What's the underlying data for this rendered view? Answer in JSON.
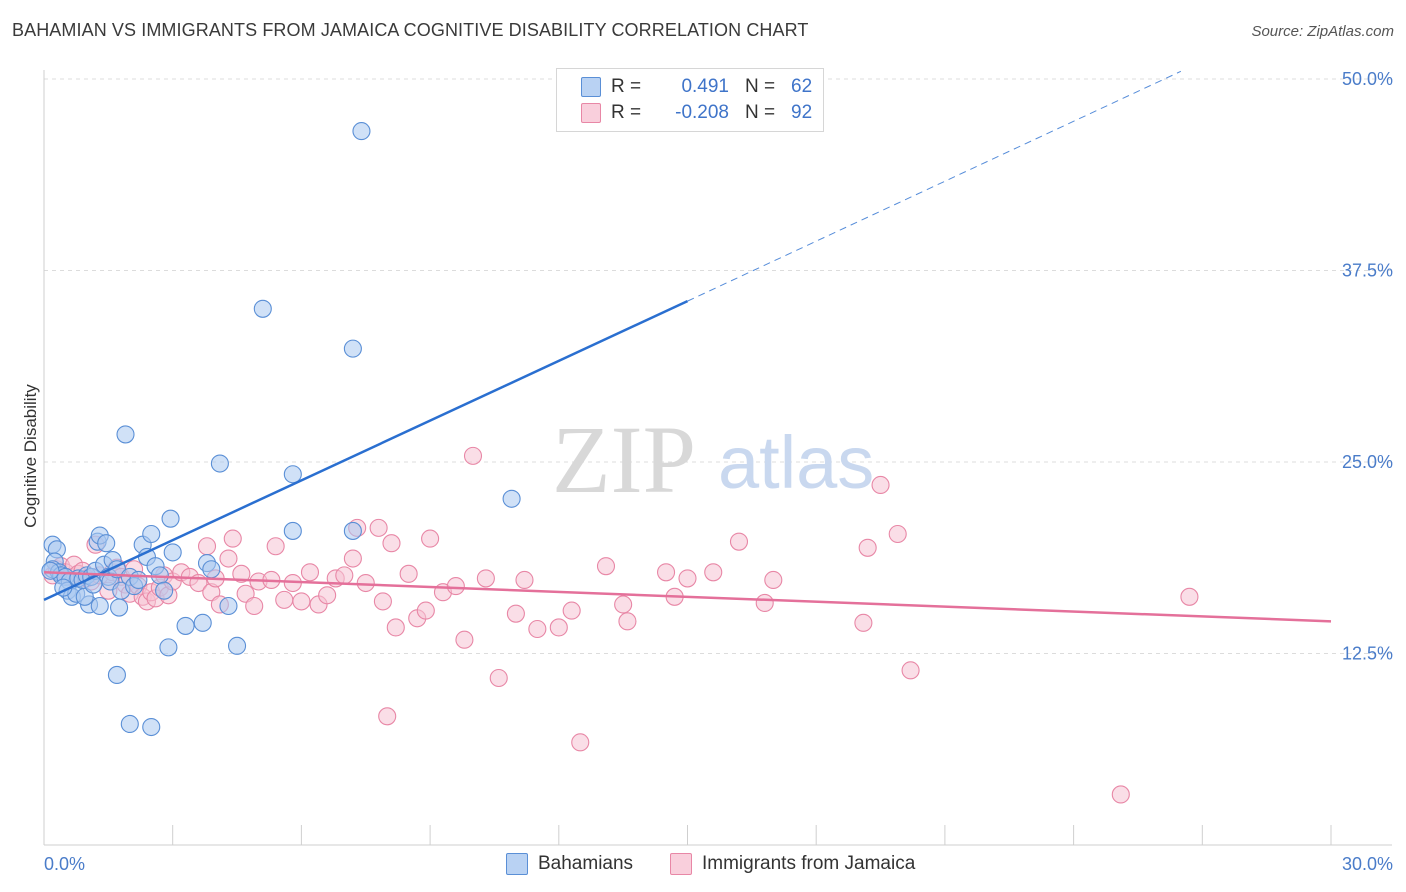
{
  "title": "BAHAMIAN VS IMMIGRANTS FROM JAMAICA COGNITIVE DISABILITY CORRELATION CHART",
  "source": "Source: ZipAtlas.com",
  "watermark": {
    "zip": "ZIP",
    "atlas": "atlas"
  },
  "colors": {
    "blue_fill": "#a9c8f0",
    "blue_stroke": "#5a8fd6",
    "blue_line": "#2a6fd0",
    "pink_fill": "#f6c3d3",
    "pink_stroke": "#e887a6",
    "pink_line": "#e4709a",
    "grid": "#dcdcdc",
    "label": "#4a7cc9"
  },
  "legend": {
    "rows": [
      {
        "r_label": "R =",
        "r_value": "0.491",
        "n_label": "N =",
        "n_value": "62"
      },
      {
        "r_label": "R =",
        "r_value": "-0.208",
        "n_label": "N =",
        "n_value": "92"
      }
    ]
  },
  "bottom_legend": {
    "series1": "Bahamians",
    "series2": "Immigrants from Jamaica"
  },
  "chart_data": {
    "type": "scatter",
    "title": "BAHAMIAN VS IMMIGRANTS FROM JAMAICA COGNITIVE DISABILITY CORRELATION CHART",
    "xlabel": "",
    "ylabel": "Cognitive Disability",
    "xlim": [
      0,
      30
    ],
    "ylim": [
      0,
      50
    ],
    "x_tick_labels": [
      "0.0%",
      "30.0%"
    ],
    "y_ticks": [
      12.5,
      25.0,
      37.5,
      50.0
    ],
    "y_tick_labels": [
      "12.5%",
      "25.0%",
      "37.5%",
      "50.0%"
    ],
    "grid": true,
    "legend_position": "top-center",
    "series": [
      {
        "name": "Bahamians",
        "r": 0.491,
        "n": 62,
        "trend": {
          "x0": 0,
          "y0": 16.0,
          "x1": 15.0,
          "y1": 35.5,
          "dashed_to_x": 26.5,
          "dashed_to_y": 50.5
        },
        "points": [
          [
            0.2,
            19.6
          ],
          [
            0.3,
            19.3
          ],
          [
            0.25,
            18.5
          ],
          [
            0.2,
            18.0
          ],
          [
            0.35,
            17.8
          ],
          [
            0.4,
            17.6
          ],
          [
            0.5,
            17.5
          ],
          [
            0.6,
            17.2
          ],
          [
            0.55,
            16.6
          ],
          [
            0.65,
            16.2
          ],
          [
            0.75,
            16.4
          ],
          [
            0.8,
            17.4
          ],
          [
            0.9,
            17.3
          ],
          [
            1.0,
            17.6
          ],
          [
            1.1,
            17.5
          ],
          [
            1.2,
            17.9
          ],
          [
            1.05,
            15.7
          ],
          [
            1.3,
            15.6
          ],
          [
            1.25,
            19.8
          ],
          [
            1.3,
            20.2
          ],
          [
            1.4,
            18.3
          ],
          [
            1.45,
            19.7
          ],
          [
            1.5,
            17.5
          ],
          [
            1.55,
            17.2
          ],
          [
            1.6,
            18.6
          ],
          [
            1.7,
            18.0
          ],
          [
            1.8,
            16.6
          ],
          [
            1.75,
            15.5
          ],
          [
            2.0,
            17.5
          ],
          [
            2.1,
            16.9
          ],
          [
            2.2,
            17.3
          ],
          [
            2.3,
            19.6
          ],
          [
            2.4,
            18.8
          ],
          [
            2.5,
            20.3
          ],
          [
            2.6,
            18.2
          ],
          [
            2.7,
            17.6
          ],
          [
            2.8,
            16.6
          ],
          [
            3.0,
            19.1
          ],
          [
            2.95,
            21.3
          ],
          [
            3.3,
            14.3
          ],
          [
            3.7,
            14.5
          ],
          [
            3.8,
            18.4
          ],
          [
            3.9,
            18.0
          ],
          [
            4.1,
            24.9
          ],
          [
            4.3,
            15.6
          ],
          [
            4.5,
            13.0
          ],
          [
            5.1,
            35.0
          ],
          [
            5.8,
            20.5
          ],
          [
            5.8,
            24.2
          ],
          [
            7.2,
            32.4
          ],
          [
            7.4,
            46.6
          ],
          [
            7.2,
            20.5
          ],
          [
            10.9,
            22.6
          ],
          [
            1.9,
            26.8
          ],
          [
            1.7,
            11.1
          ],
          [
            2.0,
            7.9
          ],
          [
            2.5,
            7.7
          ],
          [
            2.9,
            12.9
          ],
          [
            0.95,
            16.2
          ],
          [
            0.45,
            16.8
          ],
          [
            1.15,
            17.0
          ],
          [
            0.15,
            17.9
          ]
        ]
      },
      {
        "name": "Immigrants from Jamaica",
        "r": -0.208,
        "n": 92,
        "trend": {
          "x0": 0,
          "y0": 17.8,
          "x1": 30.0,
          "y1": 14.6
        },
        "points": [
          [
            0.2,
            17.6
          ],
          [
            0.3,
            18.0
          ],
          [
            0.4,
            18.2
          ],
          [
            0.5,
            17.8
          ],
          [
            0.6,
            17.5
          ],
          [
            0.7,
            18.3
          ],
          [
            0.8,
            17.7
          ],
          [
            0.9,
            17.9
          ],
          [
            1.0,
            17.4
          ],
          [
            1.1,
            17.2
          ],
          [
            1.2,
            19.6
          ],
          [
            1.3,
            17.6
          ],
          [
            1.5,
            16.6
          ],
          [
            1.6,
            17.8
          ],
          [
            1.7,
            18.1
          ],
          [
            1.8,
            17.5
          ],
          [
            1.9,
            17.0
          ],
          [
            2.0,
            16.4
          ],
          [
            2.1,
            18.0
          ],
          [
            2.2,
            16.9
          ],
          [
            2.3,
            16.2
          ],
          [
            2.4,
            15.9
          ],
          [
            2.5,
            16.5
          ],
          [
            2.6,
            16.1
          ],
          [
            2.7,
            16.8
          ],
          [
            2.8,
            17.6
          ],
          [
            2.9,
            16.3
          ],
          [
            3.0,
            17.2
          ],
          [
            3.2,
            17.8
          ],
          [
            3.4,
            17.5
          ],
          [
            3.6,
            17.1
          ],
          [
            3.8,
            19.5
          ],
          [
            3.9,
            16.5
          ],
          [
            4.0,
            17.4
          ],
          [
            4.1,
            15.7
          ],
          [
            4.3,
            18.7
          ],
          [
            4.4,
            20.0
          ],
          [
            4.6,
            17.7
          ],
          [
            4.7,
            16.4
          ],
          [
            4.9,
            15.6
          ],
          [
            5.0,
            17.2
          ],
          [
            5.3,
            17.3
          ],
          [
            5.4,
            19.5
          ],
          [
            5.6,
            16.0
          ],
          [
            5.8,
            17.1
          ],
          [
            6.0,
            15.9
          ],
          [
            6.2,
            17.8
          ],
          [
            6.4,
            15.7
          ],
          [
            6.6,
            16.3
          ],
          [
            6.8,
            17.4
          ],
          [
            7.0,
            17.6
          ],
          [
            7.2,
            18.7
          ],
          [
            7.3,
            20.7
          ],
          [
            7.5,
            17.1
          ],
          [
            7.8,
            20.7
          ],
          [
            7.9,
            15.9
          ],
          [
            8.0,
            8.4
          ],
          [
            8.1,
            19.7
          ],
          [
            8.2,
            14.2
          ],
          [
            8.5,
            17.7
          ],
          [
            8.7,
            14.8
          ],
          [
            8.9,
            15.3
          ],
          [
            9.0,
            20.0
          ],
          [
            9.3,
            16.5
          ],
          [
            9.6,
            16.9
          ],
          [
            9.8,
            13.4
          ],
          [
            10.0,
            25.4
          ],
          [
            10.3,
            17.4
          ],
          [
            10.6,
            10.9
          ],
          [
            11.0,
            15.1
          ],
          [
            11.2,
            17.3
          ],
          [
            11.5,
            14.1
          ],
          [
            12.0,
            14.2
          ],
          [
            12.3,
            15.3
          ],
          [
            12.5,
            6.7
          ],
          [
            13.1,
            18.2
          ],
          [
            13.5,
            15.7
          ],
          [
            13.6,
            14.6
          ],
          [
            14.5,
            17.8
          ],
          [
            14.7,
            16.2
          ],
          [
            15.0,
            17.4
          ],
          [
            15.6,
            17.8
          ],
          [
            16.2,
            19.8
          ],
          [
            16.8,
            15.8
          ],
          [
            17.0,
            17.3
          ],
          [
            19.1,
            14.5
          ],
          [
            19.2,
            19.4
          ],
          [
            19.5,
            23.5
          ],
          [
            19.9,
            20.3
          ],
          [
            20.2,
            11.4
          ],
          [
            25.1,
            3.3
          ],
          [
            26.7,
            16.2
          ]
        ]
      }
    ]
  }
}
